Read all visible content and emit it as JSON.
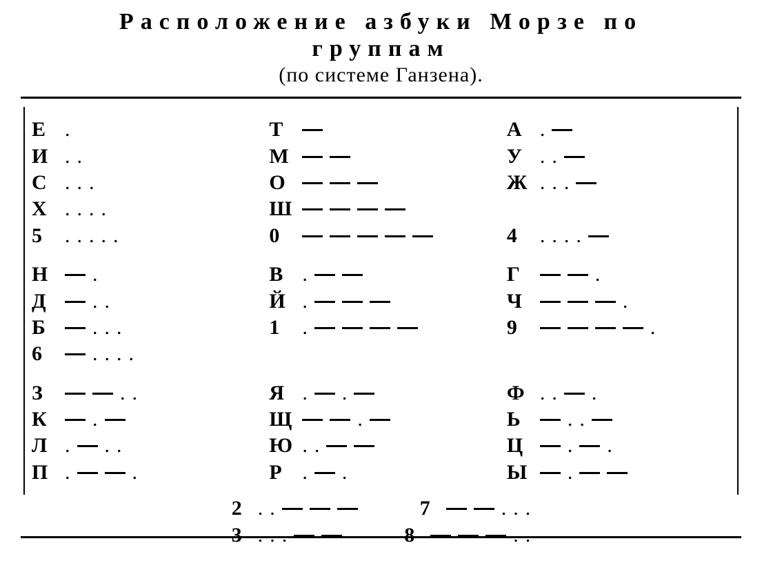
{
  "title_line1": "Расположение азбуки Морзе по",
  "title_line2": "группам",
  "subtitle": "(по системе Ганзена).",
  "colors": {
    "text": "#000000",
    "background": "#ffffff",
    "rule": "#000000"
  },
  "fontsize": {
    "title": 34,
    "subtitle": 30,
    "body": 30
  },
  "morse_glyphs": {
    "dot": "·",
    "dash": "—"
  },
  "groups": [
    {
      "rows": [
        {
          "c1": {
            "letter": "Е",
            "code": "."
          },
          "c2": {
            "letter": "Т",
            "code": "-"
          },
          "c3": {
            "letter": "А",
            "code": ".-"
          }
        },
        {
          "c1": {
            "letter": "И",
            "code": ".."
          },
          "c2": {
            "letter": "М",
            "code": "--"
          },
          "c3": {
            "letter": "У",
            "code": "..-"
          }
        },
        {
          "c1": {
            "letter": "С",
            "code": "..."
          },
          "c2": {
            "letter": "О",
            "code": "---"
          },
          "c3": {
            "letter": "Ж",
            "code": "...-"
          }
        },
        {
          "c1": {
            "letter": "Х",
            "code": "...."
          },
          "c2": {
            "letter": "Ш",
            "code": "----"
          },
          "c3": null
        },
        {
          "c1": {
            "letter": "5",
            "code": "....."
          },
          "c2": {
            "letter": "0",
            "code": "-----"
          },
          "c3": {
            "letter": "4",
            "code": "....-"
          }
        }
      ]
    },
    {
      "rows": [
        {
          "c1": {
            "letter": "Н",
            "code": "-."
          },
          "c2": {
            "letter": "В",
            "code": ".--"
          },
          "c3": {
            "letter": "Г",
            "code": "--."
          }
        },
        {
          "c1": {
            "letter": "Д",
            "code": "-.."
          },
          "c2": {
            "letter": "Й",
            "code": ".---"
          },
          "c3": {
            "letter": "Ч",
            "code": "---."
          }
        },
        {
          "c1": {
            "letter": "Б",
            "code": "-..."
          },
          "c2": {
            "letter": "1",
            "code": ".----"
          },
          "c3": {
            "letter": "9",
            "code": "----."
          }
        },
        {
          "c1": {
            "letter": "6",
            "code": "-...."
          },
          "c2": null,
          "c3": null
        }
      ]
    },
    {
      "rows": [
        {
          "c1": {
            "letter": "З",
            "code": "--.."
          },
          "c2": {
            "letter": "Я",
            "code": ".-.-"
          },
          "c3": {
            "letter": "Ф",
            "code": "..-."
          }
        },
        {
          "c1": {
            "letter": "К",
            "code": "-.-"
          },
          "c2": {
            "letter": "Щ",
            "code": "--.-"
          },
          "c3": {
            "letter": "Ь",
            "code": "-..-"
          }
        },
        {
          "c1": {
            "letter": "Л",
            "code": ".-.."
          },
          "c2": {
            "letter": "Ю",
            "code": "..--"
          },
          "c3": {
            "letter": "Ц",
            "code": "-.-."
          }
        },
        {
          "c1": {
            "letter": "П",
            "code": ".--."
          },
          "c2": {
            "letter": "Р",
            "code": ".-."
          },
          "c3": {
            "letter": "Ы",
            "code": "-.--"
          }
        }
      ]
    }
  ],
  "bottom": [
    {
      "left": {
        "letter": "2",
        "code": "..---"
      },
      "right": {
        "letter": "7",
        "code": "--..."
      }
    },
    {
      "left": {
        "letter": "3",
        "code": "...--"
      },
      "right": {
        "letter": "8",
        "code": "---.."
      }
    }
  ]
}
